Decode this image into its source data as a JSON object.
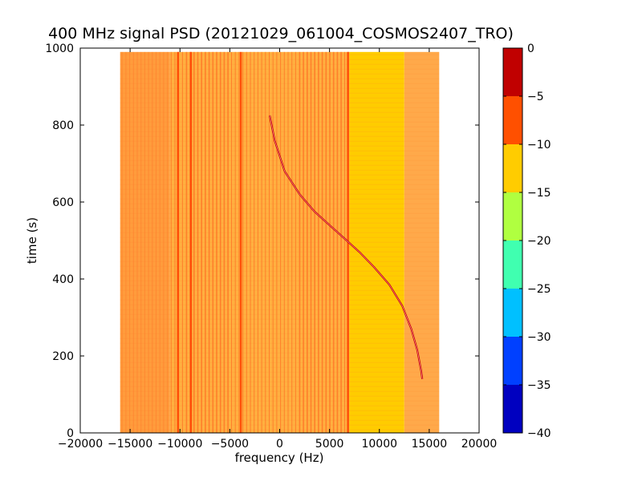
{
  "chart_data": {
    "type": "heatmap",
    "title": "400 MHz signal PSD (20121029_061004_COSMOS2407_TRO)",
    "xlabel": "frequency (Hz)",
    "ylabel": "time (s)",
    "xlim": [
      -20000,
      20000
    ],
    "ylim": [
      0,
      1000
    ],
    "xticks": [
      -20000,
      -15000,
      -10000,
      -5000,
      0,
      5000,
      10000,
      15000,
      20000
    ],
    "yticks": [
      0,
      200,
      400,
      600,
      800,
      1000
    ],
    "grid": false,
    "data_extent": {
      "x": [
        -16000,
        16000
      ],
      "y": [
        0,
        990
      ]
    },
    "colorbar": {
      "ticks": [
        0,
        -5,
        -10,
        -15,
        -20,
        -25,
        -30,
        -35,
        -40
      ],
      "range": [
        -40,
        0
      ],
      "levels": [
        {
          "from": -40,
          "to": -35,
          "color": "#0000c0"
        },
        {
          "from": -35,
          "to": -30,
          "color": "#0040ff"
        },
        {
          "from": -30,
          "to": -25,
          "color": "#00c0ff"
        },
        {
          "from": -25,
          "to": -20,
          "color": "#40ffb0"
        },
        {
          "from": -20,
          "to": -15,
          "color": "#b0ff40"
        },
        {
          "from": -15,
          "to": -10,
          "color": "#ffcc00"
        },
        {
          "from": -10,
          "to": -5,
          "color": "#ff5000"
        },
        {
          "from": -5,
          "to": 0,
          "color": "#c00000"
        }
      ]
    },
    "background_bands": [
      {
        "x": [
          -16000,
          -11000
        ],
        "level": -10,
        "color": "#ff9c3c"
      },
      {
        "x": [
          -11000,
          7000
        ],
        "level": -10,
        "color": "#ffb040"
      },
      {
        "x": [
          7000,
          12500
        ],
        "level": -12,
        "color": "#ffcc00"
      },
      {
        "x": [
          12500,
          16000
        ],
        "level": -10,
        "color": "#ffa94a"
      }
    ],
    "strong_lines_x": [
      -10200,
      -8900,
      -3900,
      6850
    ],
    "signal_trace": {
      "color": "#c00000",
      "points": [
        [
          -1000,
          825
        ],
        [
          -500,
          760
        ],
        [
          500,
          680
        ],
        [
          2000,
          620
        ],
        [
          3500,
          575
        ],
        [
          5000,
          540
        ],
        [
          6500,
          505
        ],
        [
          8000,
          470
        ],
        [
          9500,
          430
        ],
        [
          11000,
          385
        ],
        [
          12300,
          330
        ],
        [
          13200,
          270
        ],
        [
          13800,
          215
        ],
        [
          14200,
          160
        ],
        [
          14300,
          140
        ]
      ]
    }
  }
}
